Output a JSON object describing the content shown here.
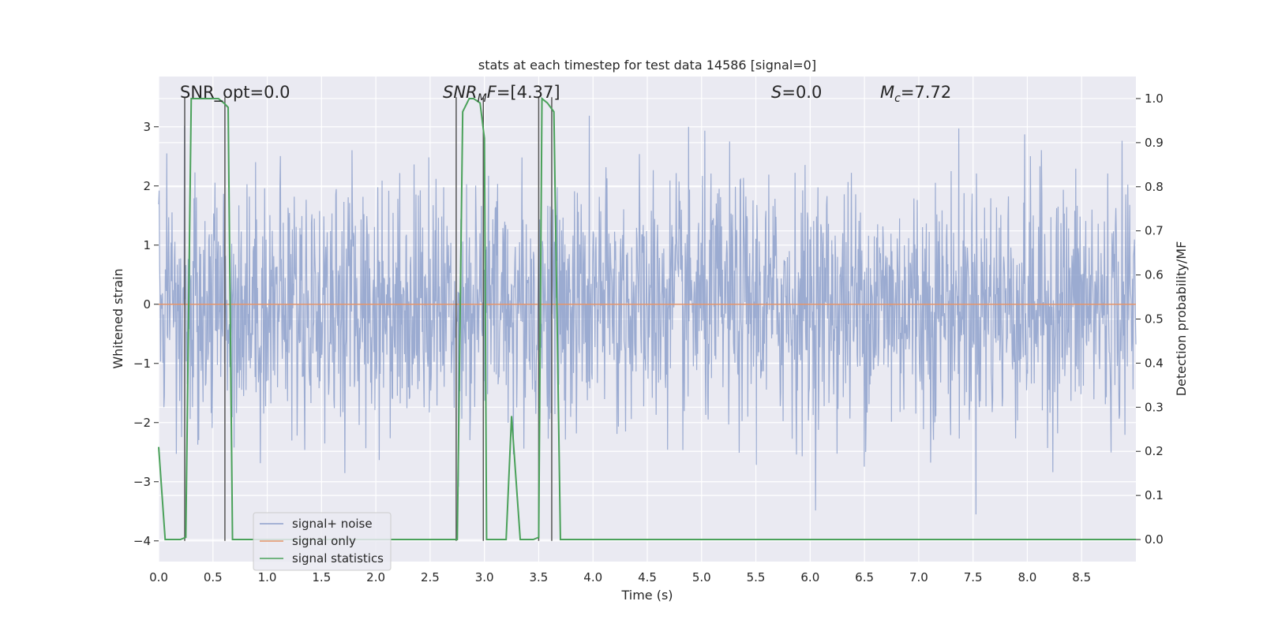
{
  "chart_data": {
    "type": "line",
    "title": "stats at each timestep for test data 14586 [signal=0]",
    "xlabel": "Time (s)",
    "ylabel_left": "Whitened strain",
    "ylabel_right": "Detection probability/MF",
    "xlim": [
      0.0,
      9.0
    ],
    "ylim_left": [
      -4.35,
      3.85
    ],
    "ylim_right": [
      -0.05,
      1.05
    ],
    "xticks": [
      0.0,
      0.5,
      1.0,
      1.5,
      2.0,
      2.5,
      3.0,
      3.5,
      4.0,
      4.5,
      5.0,
      5.5,
      6.0,
      6.5,
      7.0,
      7.5,
      8.0,
      8.5
    ],
    "xtick_labels": [
      "0.0",
      "0.5",
      "1.0",
      "1.5",
      "2.0",
      "2.5",
      "3.0",
      "3.5",
      "4.0",
      "4.5",
      "5.0",
      "5.5",
      "6.0",
      "6.5",
      "7.0",
      "7.5",
      "8.0",
      "8.5"
    ],
    "yticks_left": [
      3,
      2,
      1,
      0,
      -1,
      -2,
      -3,
      -4
    ],
    "ytick_labels_left": [
      "3",
      "2",
      "1",
      "0",
      "−1",
      "−2",
      "−3",
      "−4"
    ],
    "yticks_right": [
      1.0,
      0.9,
      0.8,
      0.7,
      0.6,
      0.5,
      0.4,
      0.3,
      0.2,
      0.1,
      0.0
    ],
    "ytick_labels_right": [
      "1.0",
      "0.9",
      "0.8",
      "0.7",
      "0.6",
      "0.5",
      "0.4",
      "0.3",
      "0.2",
      "0.1",
      "0.0"
    ],
    "grid": true,
    "legend_position": "lower-left",
    "series": [
      {
        "name": "signal+ noise",
        "axis": "left",
        "color": "#8da0cb",
        "kind": "dense noise, roughly standard normal",
        "sample_count": 2048,
        "range": [
          -3.6,
          3.45
        ]
      },
      {
        "name": "signal only",
        "axis": "left",
        "color": "#e5956b",
        "kind": "flat line",
        "value": 0
      },
      {
        "name": "signal statistics",
        "axis": "right",
        "color": "#4aa15a",
        "x": [
          0.0,
          0.06,
          0.2,
          0.25,
          0.3,
          0.45,
          0.55,
          0.6,
          0.64,
          0.68,
          2.6,
          2.75,
          2.8,
          2.86,
          2.9,
          2.96,
          3.0,
          3.02,
          3.1,
          3.2,
          3.25,
          3.33,
          3.45,
          3.5,
          3.53,
          3.58,
          3.64,
          3.7,
          4.0,
          9.0
        ],
        "y": [
          0.21,
          0.0,
          0.0,
          0.005,
          1.0,
          1.0,
          1.0,
          0.99,
          0.98,
          0.0,
          0.0,
          0.0,
          0.97,
          1.0,
          1.0,
          0.99,
          0.91,
          0.0,
          0.0,
          0.0,
          0.28,
          0.0,
          0.0,
          0.005,
          1.0,
          0.99,
          0.97,
          0.0,
          0.0,
          0.0
        ]
      }
    ],
    "vertical_markers": [
      0.24,
      0.61,
      2.74,
      2.99,
      3.5,
      3.62
    ],
    "annotations": [
      {
        "key": "snr_opt",
        "text": "SNR_opt=0.0",
        "x": 0.2
      },
      {
        "key": "snr_mf",
        "text": "SNRₘF=[4.37]",
        "x": 2.6
      },
      {
        "key": "s_value",
        "text": "S=0.0",
        "x": 5.6
      },
      {
        "key": "mc_value",
        "text": "Mᶜ=7.72",
        "x": 6.6
      }
    ],
    "annotation_parts": {
      "snr_opt": "SNR_opt=0.0",
      "snr_mf_main": "SNR",
      "snr_mf_sub": "M",
      "snr_mf_rest": "F=[4.37]",
      "s_var": "S",
      "s_rest": "=0.0",
      "mc_var": "M",
      "mc_sub": "c",
      "mc_rest": "=7.72"
    },
    "legend": [
      "signal+ noise",
      "signal only",
      "signal statistics"
    ]
  },
  "colors": {
    "plot_bg": "#eaeaf2",
    "grid": "#ffffff",
    "noise": "#8da0cb",
    "signal": "#e5956b",
    "stats": "#4aa15a",
    "marker": "#555555"
  }
}
